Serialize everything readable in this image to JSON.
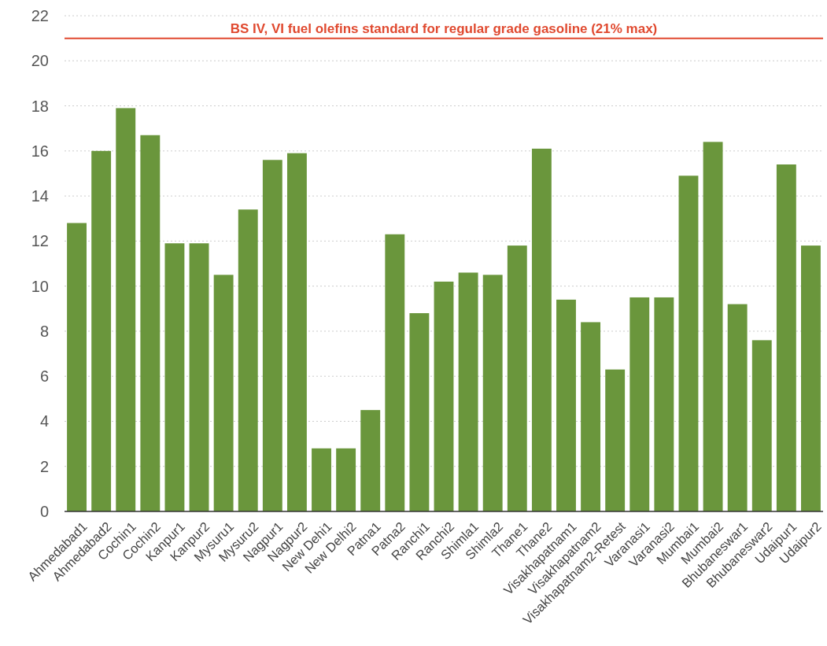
{
  "chart_data": {
    "type": "bar",
    "categories": [
      "Ahmedabad1",
      "Ahmedabad2",
      "Cochin1",
      "Cochin2",
      "Kanpur1",
      "Kanpur2",
      "Mysuru1",
      "Mysuru2",
      "Nagpur1",
      "Nagpur2",
      "New Dehi1",
      "New Delhi2",
      "Patna1",
      "Patna2",
      "Ranchi1",
      "Ranchi2",
      "Shimla1",
      "Shimla2",
      "Thane1",
      "Thane2",
      "Visakhapatnam1",
      "Visakhapatnam2",
      "Visakhapatnam2-Retest",
      "Varanasi1",
      "Varanasi2",
      "Mumbai1",
      "Mumbai2",
      "Bhubaneswar1",
      "Bhubaneswar2",
      "Udaipur1",
      "Udaipur2"
    ],
    "values": [
      12.8,
      16.0,
      17.9,
      16.7,
      11.9,
      11.9,
      10.5,
      13.4,
      15.6,
      15.9,
      2.8,
      2.8,
      4.5,
      12.3,
      8.8,
      10.2,
      10.6,
      10.5,
      11.8,
      16.1,
      9.4,
      8.4,
      6.3,
      9.5,
      9.5,
      14.9,
      16.4,
      9.2,
      7.6,
      15.4,
      11.8
    ],
    "color": "#6a963c",
    "ylim": [
      0,
      22
    ],
    "yticks": [
      0,
      2,
      4,
      6,
      8,
      10,
      12,
      14,
      16,
      18,
      20,
      22
    ],
    "grid": "y",
    "ref_lines": [
      {
        "axis": "y",
        "value": 21,
        "label": "BS IV, VI fuel olefins standard for regular grade gasoline (21% max)",
        "color": "#e0492f"
      }
    ]
  }
}
